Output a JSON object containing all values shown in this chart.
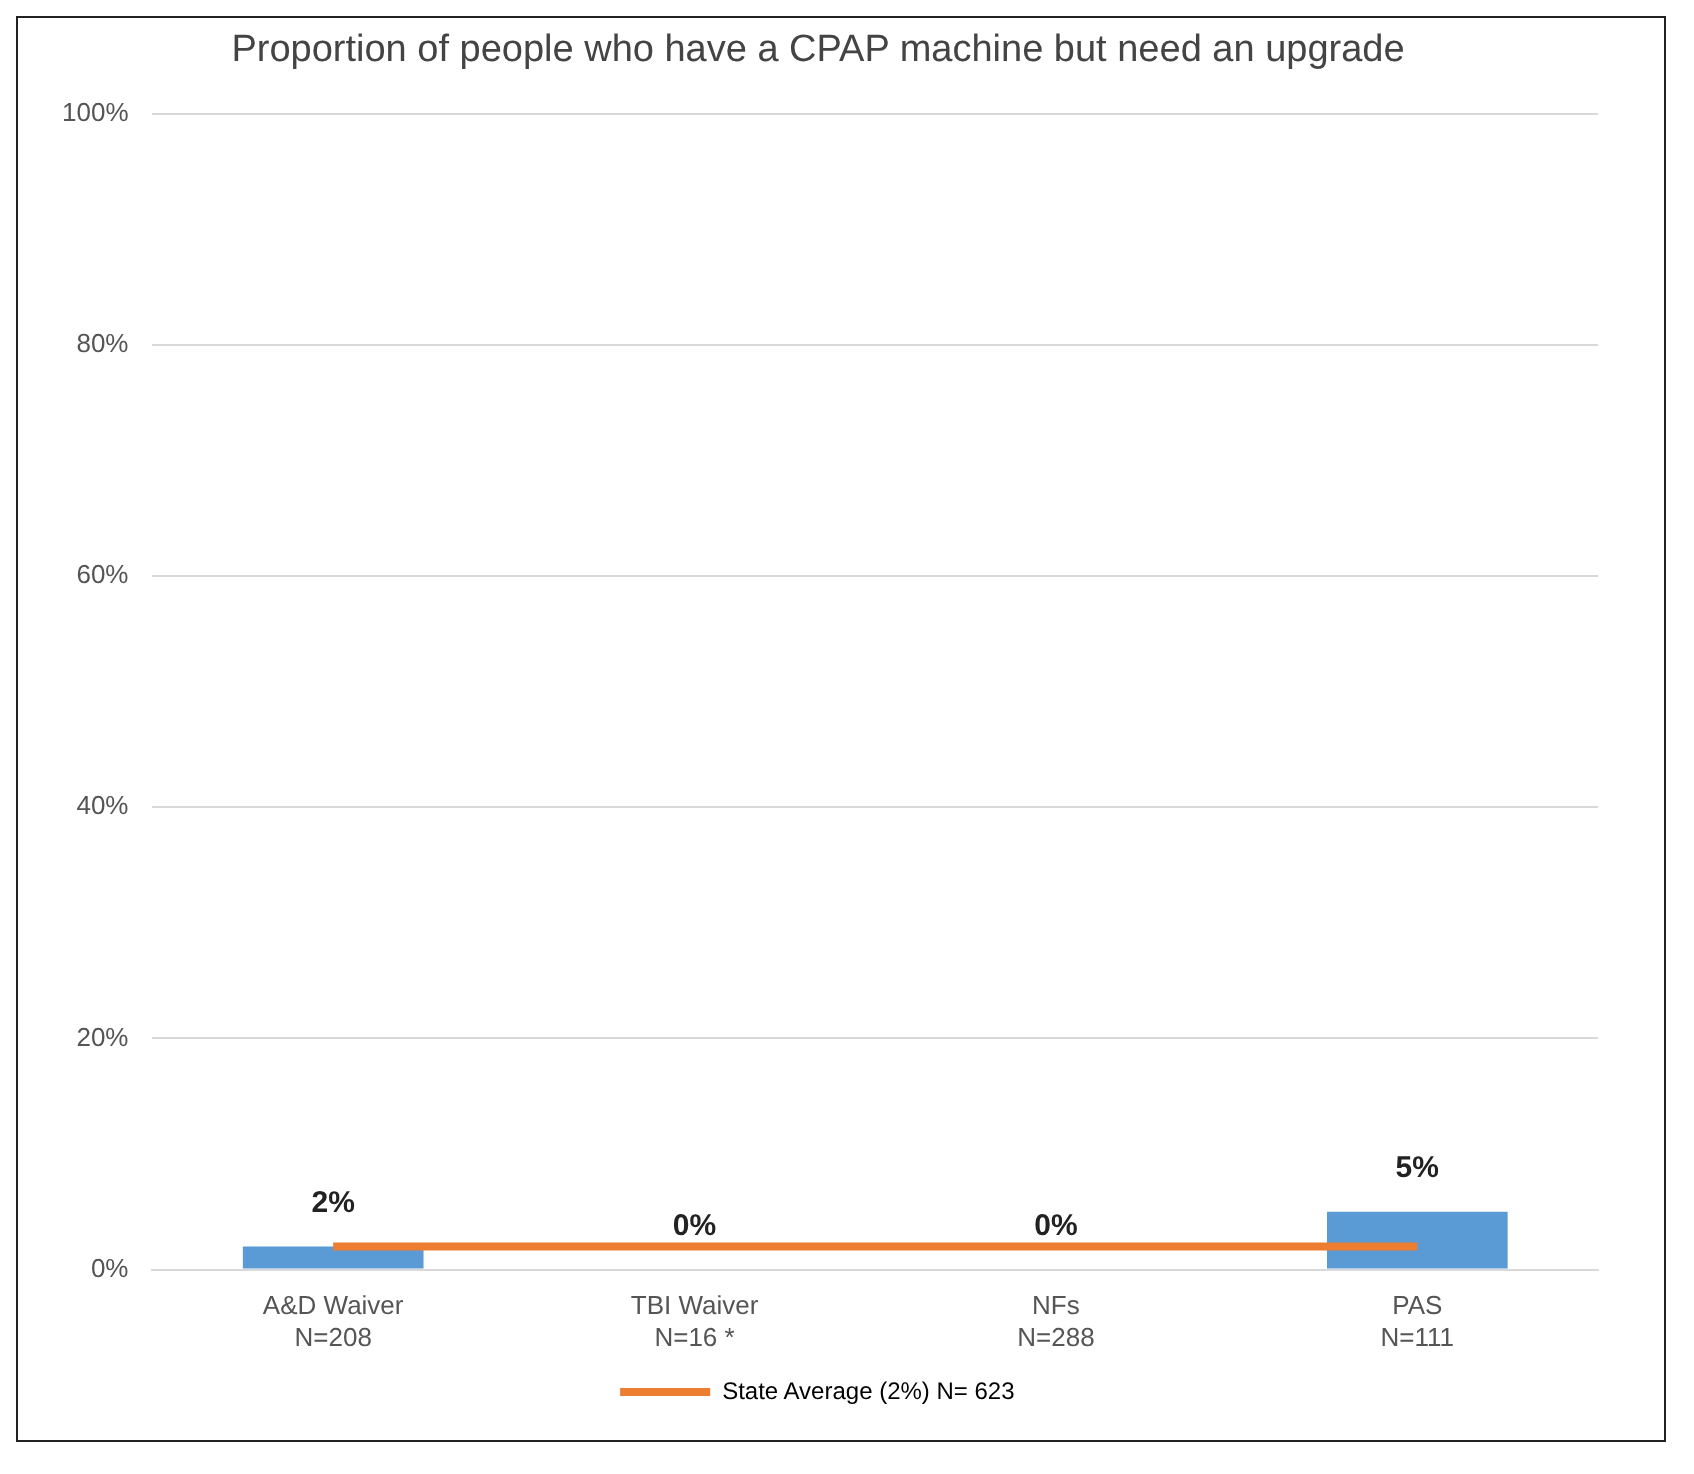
{
  "chart_data": {
    "type": "bar",
    "title": "Proportion of people who have a CPAP machine but need an upgrade",
    "categories": [
      "A&D Waiver\nN=208",
      "TBI Waiver\nN=16 *",
      "NFs\nN=288",
      "PAS\nN=111"
    ],
    "series": [
      {
        "color": "#5b9bd5",
        "values": [
          2,
          0,
          0,
          5
        ],
        "value_labels": [
          "2%",
          "0%",
          "0%",
          "5%"
        ]
      },
      {
        "type": "line",
        "name": "State Average (2%) N= 623",
        "color": "#ed7d31",
        "values": [
          2,
          2,
          2,
          2
        ]
      }
    ],
    "ylim": [
      0,
      100
    ],
    "yticks": [
      {
        "value": 0,
        "label": "0%"
      },
      {
        "value": 20,
        "label": "20%"
      },
      {
        "value": 40,
        "label": "40%"
      },
      {
        "value": 60,
        "label": "60%"
      },
      {
        "value": 80,
        "label": "80%"
      },
      {
        "value": 100,
        "label": "100%"
      }
    ],
    "grid": "y",
    "legend": "bottom",
    "marker": "none"
  }
}
